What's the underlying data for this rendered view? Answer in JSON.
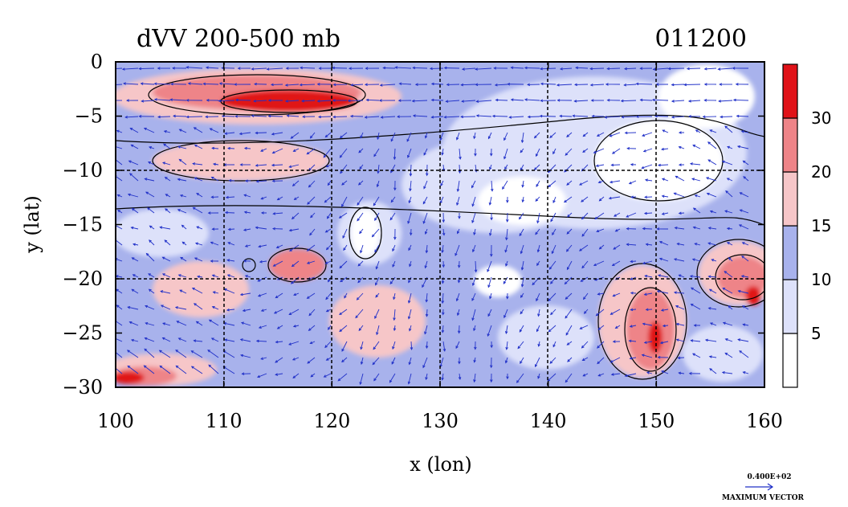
{
  "chart_data": {
    "type": "heatmap",
    "title": "dVV 200-500 mb",
    "time_label": "011200",
    "xlabel": "x (lon)",
    "ylabel": "y (lat)",
    "xlim": [
      100,
      160
    ],
    "ylim": [
      -30,
      0
    ],
    "x_ticks": [
      100,
      110,
      120,
      130,
      140,
      150,
      160
    ],
    "y_ticks": [
      0,
      -5,
      -10,
      -15,
      -20,
      -25,
      -30
    ],
    "grid": "dashed at 10 lon / 5 lat",
    "colorbar": {
      "levels": [
        5,
        10,
        15,
        20,
        30
      ],
      "colors": [
        "#ffffff",
        "#dde1fa",
        "#a8b2ec",
        "#f6c6c8",
        "#ee8488",
        "#e01218"
      ]
    },
    "vector_legend": {
      "value_label": "0.400E+02",
      "label": "MAXIMUM VECTOR"
    },
    "max_regions": [
      {
        "lon": 114,
        "lat": -4,
        "level": 30
      },
      {
        "lon": 150,
        "lat": -25.5,
        "level": 30
      },
      {
        "lon": 159,
        "lat": -21.5,
        "level": 30
      },
      {
        "lon": 101,
        "lat": -29,
        "level": 30
      }
    ]
  }
}
